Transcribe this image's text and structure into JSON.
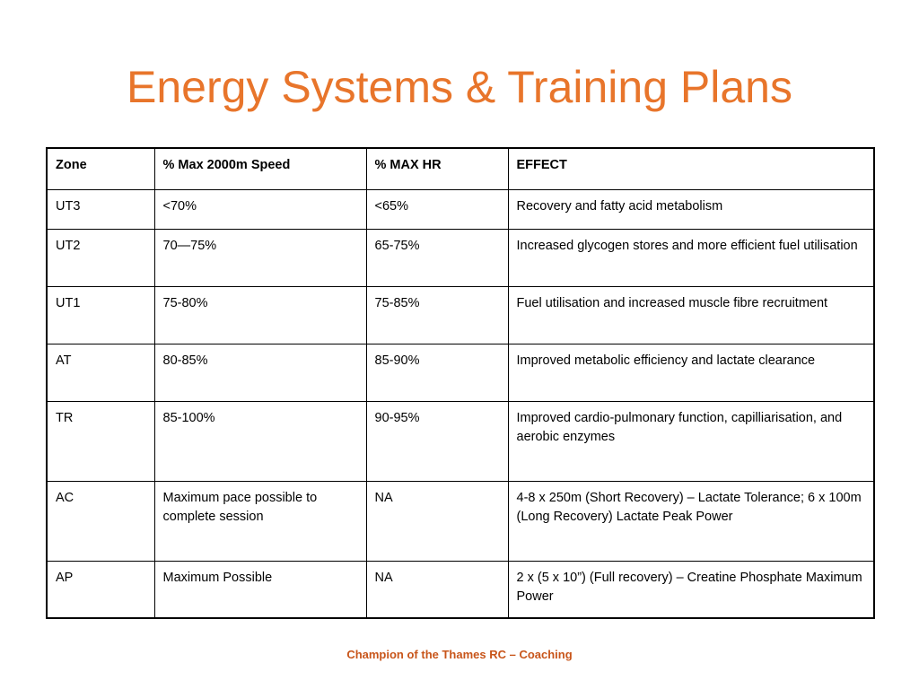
{
  "title": "Energy Systems & Training Plans",
  "accent_color": "#e8752b",
  "table": {
    "headers": [
      "Zone",
      "% Max 2000m Speed",
      "% MAX HR",
      "EFFECT"
    ],
    "rows": [
      [
        "UT3",
        "<70%",
        "<65%",
        "Recovery and fatty acid metabolism"
      ],
      [
        "UT2",
        "70—75%",
        "65-75%",
        "Increased glycogen stores and more efficient fuel utilisation"
      ],
      [
        "UT1",
        "75-80%",
        "75-85%",
        "Fuel utilisation and increased muscle fibre recruitment"
      ],
      [
        "AT",
        "80-85%",
        "85-90%",
        "Improved metabolic efficiency and lactate clearance"
      ],
      [
        "TR",
        "85-100%",
        "90-95%",
        "Improved cardio-pulmonary function, capilliarisation, and aerobic enzymes"
      ],
      [
        "AC",
        "Maximum pace possible to complete session",
        "NA",
        "4-8 x 250m (Short Recovery) – Lactate Tolerance; 6 x 100m (Long Recovery) Lactate Peak Power"
      ],
      [
        "AP",
        "Maximum Possible",
        "NA",
        "2 x (5  x 10”) (Full recovery) – Creatine Phosphate Maximum Power"
      ]
    ]
  },
  "footer": "Champion of the Thames RC – Coaching"
}
